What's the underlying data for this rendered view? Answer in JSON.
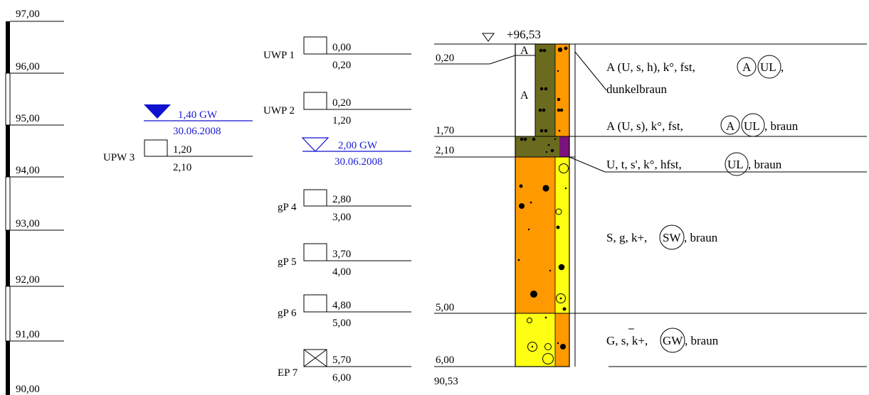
{
  "scale": {
    "labels": [
      "97,00",
      "96,00",
      "95,00",
      "94,00",
      "93,00",
      "92,00",
      "91,00",
      "90,00"
    ]
  },
  "groundwater": [
    {
      "depth": "1,40 GW",
      "date": "30.06.2008",
      "color": "#1010d0",
      "filled": true
    },
    {
      "depth": "2,00 GW",
      "date": "30.06.2008",
      "color": "#1010d0",
      "filled": false
    }
  ],
  "samples_left": [
    {
      "name": "UPW 3",
      "top": "1,20",
      "bottom": "2,10"
    }
  ],
  "samples": [
    {
      "name": "UWP 1",
      "top": "0,00",
      "bottom": "0,20",
      "crossed": false
    },
    {
      "name": "UWP 2",
      "top": "0,20",
      "bottom": "1,20",
      "crossed": false
    },
    {
      "name": "gP 4",
      "top": "2,80",
      "bottom": "3,00",
      "crossed": false
    },
    {
      "name": "gP 5",
      "top": "3,70",
      "bottom": "4,00",
      "crossed": false
    },
    {
      "name": "gP 6",
      "top": "4,80",
      "bottom": "5,00",
      "crossed": false
    },
    {
      "name": "EP 7",
      "top": "5,70",
      "bottom": "6,00",
      "crossed": true
    }
  ],
  "profile": {
    "elevation": "+96,53",
    "base_elevation": "90,53",
    "depths": [
      "0,20",
      "1,70",
      "2,10",
      "5,00",
      "6,00"
    ],
    "fill_symbol": "A"
  },
  "descriptions": [
    {
      "lines": [
        "A (U, s, h), k°, fst, ",
        ", dunkelbraun"
      ],
      "circled": [
        "A",
        "UL"
      ]
    },
    {
      "lines": [
        "A (U, s), k°, fst, ",
        ", braun"
      ],
      "circled": [
        "A",
        "UL"
      ]
    },
    {
      "lines": [
        "U, t, s', k°, hfst, ",
        ", braun"
      ],
      "circled": [
        "UL"
      ]
    },
    {
      "lines": [
        "S, g, k+, ",
        ", braun"
      ],
      "circled": [
        "SW"
      ]
    },
    {
      "lines": [
        "G, s, k+, ",
        ", braun"
      ],
      "circled": [
        "GW"
      ]
    }
  ],
  "colors": {
    "olive": "#6b6b1f",
    "orange": "#ff9900",
    "yellow": "#ffff14",
    "purple": "#7a137a",
    "groundwater": "#1010d0"
  }
}
